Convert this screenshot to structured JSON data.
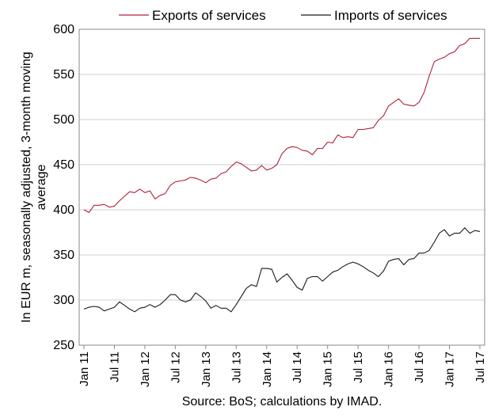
{
  "chart_data": {
    "type": "line",
    "title": "",
    "xlabel": "",
    "ylabel": "In EUR m, seasonally adjusted, 3-month moving average",
    "ylim": [
      250,
      600
    ],
    "y_ticks": [
      250,
      300,
      350,
      400,
      450,
      500,
      550,
      600
    ],
    "x_tick_labels": [
      "Jan 11",
      "Jul 11",
      "Jan 12",
      "Jul 12",
      "Jan 13",
      "Jul 13",
      "Jan 14",
      "Jul 14",
      "Jan 15",
      "Jul 15",
      "Jan 16",
      "Jul 16",
      "Jan 17",
      "Jul 17"
    ],
    "x_start": "Jan 11",
    "x_end": "Jul 17",
    "legend_position": "top",
    "grid": "horizontal",
    "source": "Source: BoS; calculations by IMAD.",
    "series": [
      {
        "name": "Exports of services",
        "color": "#b0223a",
        "values": [
          400,
          397,
          405,
          405,
          406,
          403,
          404,
          410,
          415,
          420,
          419,
          423,
          419,
          421,
          412,
          416,
          418,
          427,
          431,
          432,
          433,
          436,
          435,
          433,
          430,
          434,
          435,
          440,
          442,
          448,
          453,
          451,
          447,
          443,
          444,
          449,
          444,
          446,
          450,
          462,
          468,
          470,
          469,
          466,
          465,
          461,
          468,
          468,
          475,
          474,
          483,
          480,
          481,
          480,
          489,
          489,
          490,
          491,
          499,
          504,
          515,
          519,
          523,
          517,
          516,
          515,
          519,
          530,
          548,
          564,
          567,
          569,
          573,
          575,
          582,
          584,
          590,
          590,
          590
        ]
      },
      {
        "name": "Imports of services",
        "color": "#1a1a1a",
        "values": [
          290,
          292,
          293,
          292,
          288,
          290,
          292,
          298,
          294,
          290,
          287,
          291,
          292,
          295,
          292,
          295,
          300,
          306,
          306,
          300,
          298,
          300,
          308,
          304,
          299,
          291,
          294,
          291,
          291,
          287,
          295,
          304,
          313,
          317,
          315,
          335,
          335,
          334,
          320,
          325,
          329,
          322,
          314,
          311,
          324,
          326,
          326,
          321,
          326,
          331,
          333,
          337,
          340,
          342,
          340,
          337,
          333,
          330,
          326,
          332,
          343,
          345,
          346,
          339,
          345,
          346,
          352,
          352,
          355,
          364,
          374,
          378,
          371,
          374,
          374,
          380,
          374,
          377,
          376
        ]
      }
    ]
  }
}
